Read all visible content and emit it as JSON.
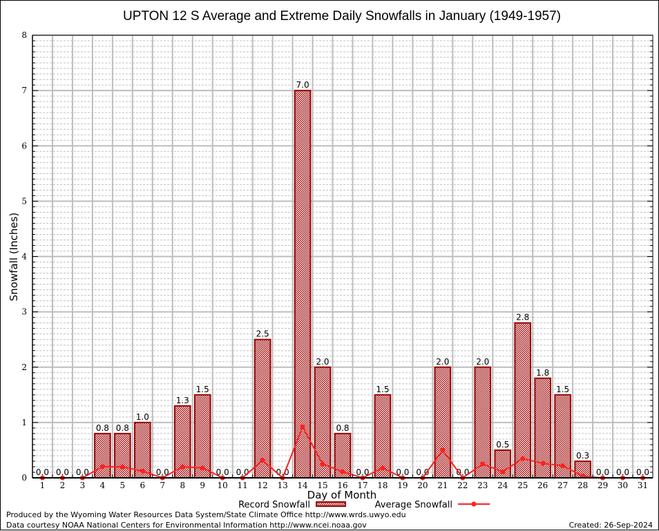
{
  "chart_data": {
    "type": "bar",
    "title": "UPTON 12 S Average and Extreme Daily Snowfalls in January (1949-1957)",
    "xlabel": "Day of Month",
    "ylabel": "Snowfall (Inches)",
    "ylim": [
      0,
      8
    ],
    "yticks": [
      "0",
      "1",
      "2",
      "3",
      "4",
      "5",
      "6",
      "7",
      "8"
    ],
    "grid": true,
    "categories": [
      "1",
      "2",
      "3",
      "4",
      "5",
      "6",
      "7",
      "8",
      "9",
      "10",
      "11",
      "12",
      "13",
      "14",
      "15",
      "16",
      "17",
      "18",
      "19",
      "20",
      "21",
      "22",
      "23",
      "24",
      "25",
      "26",
      "27",
      "28",
      "29",
      "30",
      "31"
    ],
    "series": [
      {
        "name": "Record Snowfall",
        "type": "bar",
        "color": "#990000",
        "values": [
          0.0,
          0.0,
          0.0,
          0.8,
          0.8,
          1.0,
          0.0,
          1.3,
          1.5,
          0.0,
          0.0,
          2.5,
          0.0,
          7.0,
          2.0,
          0.8,
          0.0,
          1.5,
          0.0,
          0.0,
          2.0,
          0.0,
          2.0,
          0.5,
          2.8,
          1.8,
          1.5,
          0.3,
          0.0,
          0.0,
          0.0
        ],
        "labels": [
          "0.0",
          "0.0",
          "0.0",
          "0.8",
          "0.8",
          "1.0",
          "0.0",
          "1.3",
          "1.5",
          "0.0",
          "0.0",
          "2.5",
          "0.0",
          "7.0",
          "2.0",
          "0.8",
          "0.0",
          "1.5",
          "0.0",
          "0.0",
          "2.0",
          "0.0",
          "2.0",
          "0.5",
          "2.8",
          "1.8",
          "1.5",
          "0.3",
          "0.0",
          "0.0",
          "0.0"
        ]
      },
      {
        "name": "Average Snowfall",
        "type": "line",
        "color": "#ff2020",
        "values": [
          0.0,
          0.0,
          0.0,
          0.2,
          0.2,
          0.12,
          0.0,
          0.2,
          0.18,
          0.0,
          0.0,
          0.32,
          0.0,
          0.92,
          0.25,
          0.11,
          0.0,
          0.18,
          0.0,
          0.0,
          0.5,
          0.0,
          0.25,
          0.11,
          0.35,
          0.26,
          0.22,
          0.03,
          0.0,
          0.0,
          0.0
        ]
      }
    ],
    "legend": {
      "position": "bottom-center",
      "items": [
        "Record Snowfall",
        "Average Snowfall"
      ]
    }
  },
  "footer": {
    "line1": "Produced by the Wyoming Water Resources Data System/State Climate Office http://www.wrds.uwyo.edu",
    "line2": "Data courtesy NOAA National Centers for Environmental Information http://www.ncei.noaa.gov",
    "created": "Created: 26-Sep-2024"
  }
}
